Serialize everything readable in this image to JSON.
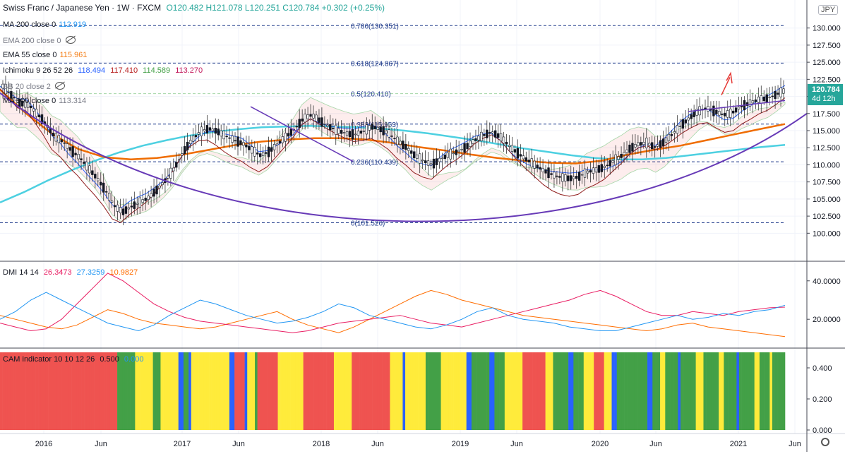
{
  "header": {
    "title": "Swiss Franc / Japanese Yen · 1W · FXCM",
    "ohlc": "O120.482 H121.078 L120.251 C120.784 +0.302 (+0.25%)"
  },
  "indicators": {
    "ma200": {
      "label": "MA 200 close 0",
      "value": "112.919",
      "color": "#2196f3"
    },
    "ema200": {
      "label": "EMA 200 close 0"
    },
    "ema55": {
      "label": "EMA 55 close 0",
      "value": "115.961",
      "color": "#f57f17"
    },
    "ichimoku": {
      "label": "Ichimoku 9 26 52 26",
      "v1": "118.494",
      "v2": "117.410",
      "v3": "114.589",
      "v4": "113.270"
    },
    "bb": {
      "label": "BB 20 close 2"
    },
    "ma100": {
      "label": "MA 100 close 0",
      "value": "113.314"
    },
    "dmi": {
      "label": "DMI 14 14",
      "v1": "26.3473",
      "v2": "27.3259",
      "v3": "10.9827"
    },
    "cam": {
      "label": "CAM indicator 10 10 12 26",
      "v1": "0.500",
      "v2": "0.000"
    }
  },
  "currency_badge": "JPY",
  "price_badge": {
    "price": "120.784",
    "countdown": "4d 12h"
  },
  "colors": {
    "up": "#26a69a",
    "down": "#ef5350",
    "bb": "#2962ff",
    "ma200": "#4dd0e1",
    "ema55": "#ef6c00",
    "arc": "#673ab7",
    "cam_green": "#43a047",
    "cam_red": "#ef5350",
    "cam_yellow": "#ffeb3b",
    "cam_blue": "#2962ff",
    "adx": "#ff6d00",
    "di_plus": "#e91e63",
    "di_minus": "#2196f3"
  },
  "chart_data": [
    {
      "type": "candlestick",
      "pane": "price",
      "y_ticks": [
        "130.000",
        "127.500",
        "125.000",
        "122.500",
        "120.000",
        "117.500",
        "115.000",
        "112.500",
        "110.000",
        "107.500",
        "105.000",
        "102.500",
        "100.000"
      ],
      "ylim": [
        99,
        131
      ],
      "x_ticks": [
        "2016",
        "Jun",
        "2017",
        "Jun",
        "2018",
        "Jun",
        "2019",
        "Jun",
        "2020",
        "Jun",
        "2021",
        "Jun"
      ],
      "fib_levels": [
        {
          "label": "0.786(130.351)",
          "value": 130.351
        },
        {
          "label": "0.618(124.867)",
          "value": 124.867
        },
        {
          "label": "0.5(120.410)",
          "value": 120.41
        },
        {
          "label": "0.382(115.953)",
          "value": 115.953
        },
        {
          "label": "0.236(110.439)",
          "value": 110.439
        },
        {
          "label": "0(101.526)",
          "value": 101.526
        }
      ],
      "close_series": [
        121.5,
        120.2,
        119.0,
        118.8,
        117.5,
        116.0,
        114.2,
        113.4,
        112.1,
        111.0,
        109.5,
        108.0,
        106.2,
        104.0,
        103.1,
        103.9,
        104.5,
        105.2,
        106.4,
        107.8,
        109.5,
        111.8,
        113.6,
        114.8,
        115.3,
        114.9,
        114.2,
        113.6,
        113.1,
        112.2,
        111.4,
        111.9,
        113.0,
        114.1,
        115.2,
        116.7,
        117.3,
        116.4,
        115.6,
        115.0,
        114.6,
        114.4,
        114.9,
        115.6,
        115.2,
        114.6,
        113.5,
        112.6,
        111.4,
        110.6,
        110.0,
        110.8,
        111.5,
        111.9,
        112.6,
        113.6,
        114.3,
        114.8,
        114.1,
        112.8,
        111.7,
        110.8,
        110.0,
        109.2,
        108.6,
        108.2,
        108.0,
        108.2,
        108.9,
        109.2,
        109.6,
        110.4,
        111.2,
        112.3,
        113.0,
        113.2,
        112.6,
        113.3,
        114.4,
        115.7,
        116.8,
        117.8,
        118.3,
        117.8,
        117.3,
        117.6,
        118.5,
        119.0,
        119.5,
        119.7,
        120.2,
        120.784
      ],
      "ma200_series": [
        104.5,
        106.0,
        107.7,
        109.2,
        110.6,
        111.8,
        112.8,
        113.6,
        114.3,
        114.8,
        115.2,
        115.5,
        115.6,
        115.7,
        115.6,
        115.5,
        115.3,
        115.0,
        114.6,
        114.1,
        113.6,
        113.0,
        112.4,
        111.9,
        111.4,
        111.0,
        110.8,
        110.8,
        111.0,
        111.4,
        111.8,
        112.2,
        112.6,
        112.9
      ],
      "ema55_series": [
        121.0,
        117.5,
        114.5,
        112.3,
        111.1,
        110.8,
        111.0,
        111.5,
        112.2,
        112.9,
        113.4,
        113.7,
        113.9,
        113.9,
        113.7,
        113.2,
        112.6,
        112.1,
        111.5,
        111.0,
        110.6,
        110.3,
        110.2,
        110.6,
        111.5,
        112.2,
        112.8,
        113.6,
        114.4,
        115.2,
        115.961
      ],
      "cup_arc": {
        "left_y": 120.5,
        "bottom_y": 102.7,
        "right_y": 117.5
      }
    },
    {
      "type": "line",
      "pane": "dmi",
      "y_ticks": [
        "40.0000",
        "20.0000"
      ],
      "ylim": [
        5,
        48
      ],
      "series": [
        {
          "name": "ADX",
          "color": "#ff6d00",
          "values": [
            22,
            20,
            18,
            16,
            15,
            17,
            21,
            25,
            23,
            20,
            18,
            17,
            16,
            15,
            16,
            18,
            20,
            22,
            24,
            20,
            17,
            15,
            13,
            16,
            20,
            24,
            28,
            32,
            35,
            33,
            30,
            28,
            26,
            24,
            22,
            21,
            20,
            19,
            18,
            17,
            16,
            15,
            14,
            15,
            17,
            18,
            16,
            15,
            14,
            13,
            12,
            11
          ]
        },
        {
          "name": "+DI",
          "color": "#e91e63",
          "values": [
            18,
            16,
            14,
            15,
            20,
            28,
            36,
            44,
            40,
            34,
            28,
            24,
            21,
            19,
            18,
            17,
            16,
            15,
            14,
            13,
            14,
            16,
            18,
            19,
            20,
            21,
            22,
            20,
            18,
            17,
            16,
            18,
            20,
            22,
            24,
            26,
            28,
            30,
            33,
            35,
            32,
            28,
            24,
            22,
            22,
            24,
            23,
            22,
            24,
            25,
            26,
            26.3
          ]
        },
        {
          "name": "-DI",
          "color": "#2196f3",
          "values": [
            20,
            24,
            30,
            34,
            30,
            26,
            22,
            18,
            16,
            14,
            17,
            22,
            26,
            30,
            28,
            25,
            22,
            20,
            18,
            19,
            21,
            24,
            28,
            26,
            22,
            20,
            18,
            16,
            15,
            17,
            20,
            24,
            26,
            22,
            20,
            19,
            18,
            16,
            15,
            14,
            14,
            16,
            18,
            20,
            22,
            20,
            21,
            23,
            22,
            24,
            25,
            27.3
          ]
        }
      ]
    },
    {
      "type": "bar",
      "pane": "cam",
      "y_ticks": [
        "0.400",
        "0.200",
        "0.000"
      ],
      "ylim": [
        0,
        0.5
      ],
      "colors_sequence": [
        "red",
        "red",
        "red",
        "red",
        "red",
        "red",
        "red",
        "red",
        "red",
        "red",
        "red",
        "red",
        "red",
        "red",
        "red",
        "red",
        "red",
        "red",
        "red",
        "red",
        "red",
        "red",
        "red",
        "red",
        "red",
        "red",
        "red",
        "red",
        "red",
        "red",
        "red",
        "red",
        "red",
        "red",
        "red",
        "red",
        "red",
        "red",
        "red",
        "red",
        "red",
        "red",
        "red",
        "red",
        "red",
        "red",
        "green",
        "green",
        "green",
        "green",
        "green",
        "green",
        "green",
        "yellow",
        "yellow",
        "yellow",
        "yellow",
        "yellow",
        "yellow",
        "yellow",
        "green",
        "green",
        "green",
        "yellow",
        "yellow",
        "yellow",
        "yellow",
        "yellow",
        "yellow",
        "yellow",
        "blue",
        "blue",
        "green",
        "green",
        "blue",
        "yellow",
        "yellow",
        "yellow",
        "yellow",
        "yellow",
        "yellow",
        "yellow",
        "yellow",
        "yellow",
        "yellow",
        "yellow",
        "yellow",
        "yellow",
        "yellow",
        "yellow",
        "blue",
        "blue",
        "red",
        "red",
        "red",
        "red",
        "blue",
        "yellow",
        "yellow",
        "yellow",
        "green",
        "red",
        "red",
        "red",
        "red",
        "red",
        "red",
        "red",
        "red",
        "yellow",
        "yellow",
        "yellow",
        "yellow",
        "yellow",
        "yellow",
        "yellow",
        "yellow",
        "yellow",
        "yellow",
        "red",
        "red",
        "red",
        "red",
        "red",
        "red",
        "red",
        "red",
        "red",
        "red",
        "red",
        "red",
        "yellow",
        "yellow",
        "yellow",
        "yellow",
        "yellow",
        "yellow",
        "yellow",
        "red",
        "red",
        "red",
        "red",
        "red",
        "red",
        "red",
        "red",
        "red",
        "red",
        "red",
        "red",
        "red",
        "red",
        "red",
        "yellow",
        "yellow",
        "yellow",
        "yellow",
        "yellow",
        "blue",
        "yellow",
        "yellow",
        "yellow",
        "yellow",
        "yellow",
        "yellow",
        "yellow",
        "yellow",
        "green",
        "green",
        "green",
        "green",
        "green",
        "green",
        "yellow",
        "yellow",
        "yellow",
        "yellow",
        "yellow",
        "yellow",
        "yellow",
        "yellow",
        "yellow",
        "yellow",
        "blue",
        "blue",
        "green",
        "green",
        "green",
        "green",
        "green",
        "green",
        "green",
        "blue",
        "blue",
        "green",
        "green",
        "green",
        "green",
        "yellow",
        "yellow",
        "yellow",
        "yellow",
        "yellow",
        "yellow",
        "yellow",
        "red",
        "red",
        "red",
        "red",
        "red",
        "red",
        "red",
        "red",
        "red",
        "yellow",
        "yellow",
        "yellow",
        "green",
        "green",
        "green",
        "green",
        "green",
        "green",
        "blue",
        "blue",
        "green",
        "green",
        "green",
        "green",
        "yellow",
        "yellow",
        "yellow",
        "yellow",
        "red",
        "red",
        "red",
        "red",
        "yellow",
        "yellow",
        "yellow",
        "blue",
        "blue",
        "green",
        "green",
        "green",
        "green",
        "green",
        "green",
        "green",
        "green",
        "green",
        "green",
        "green",
        "green",
        "blue",
        "blue",
        "green",
        "green",
        "green",
        "yellow",
        "yellow",
        "green",
        "green",
        "green",
        "green",
        "green",
        "blue",
        "green",
        "green",
        "green",
        "green",
        "green",
        "green",
        "yellow",
        "yellow",
        "yellow",
        "green",
        "green",
        "green",
        "green",
        "green",
        "green",
        "yellow",
        "yellow",
        "green",
        "green",
        "green",
        "green",
        "green",
        "blue",
        "green",
        "green",
        "green",
        "green",
        "green",
        "green",
        "yellow",
        "yellow",
        "green",
        "green",
        "green",
        "green",
        "yellow",
        "green",
        "green",
        "green",
        "green",
        "green"
      ]
    }
  ]
}
